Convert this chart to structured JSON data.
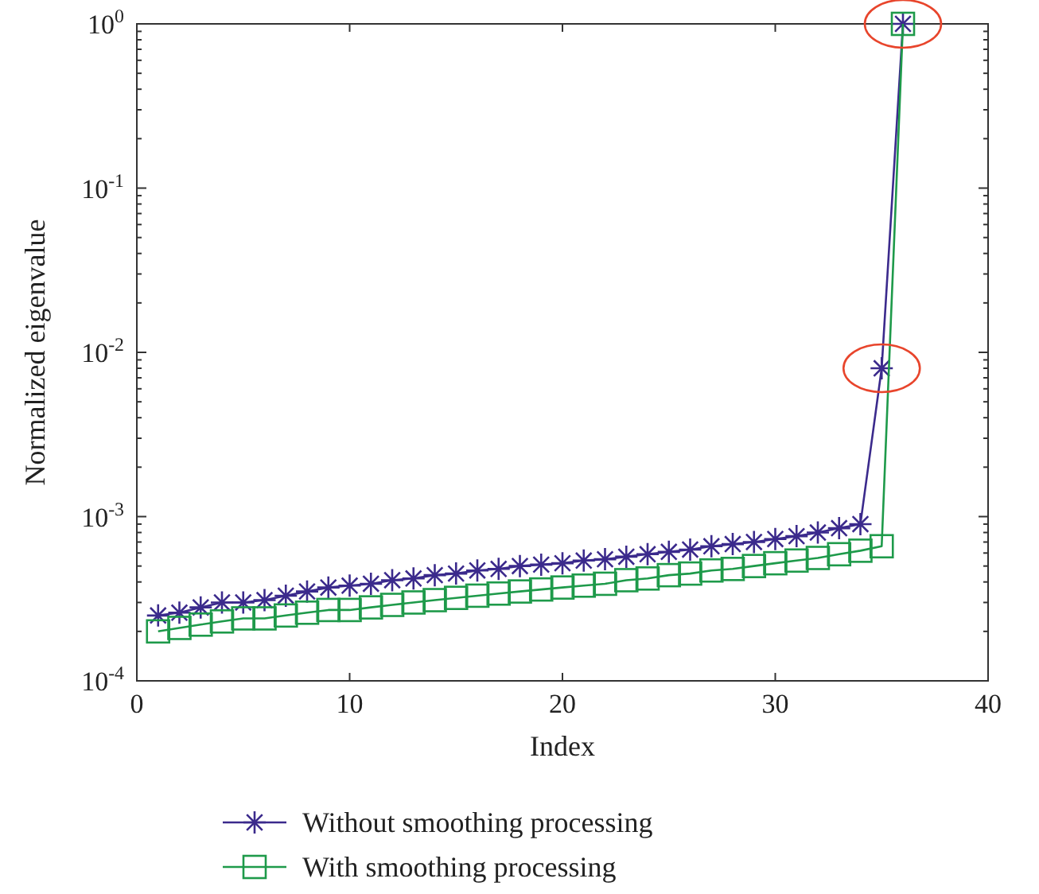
{
  "chart_data": {
    "type": "line",
    "xlabel": "Index",
    "ylabel": "Normalized eigenvalue",
    "log": "y",
    "xlim": [
      0,
      40
    ],
    "xticks": [
      0,
      10,
      20,
      30,
      40
    ],
    "ylim": [
      0.0001,
      1
    ],
    "yticks": [
      {
        "value": 0.0001,
        "label": "10$^{-4}$"
      },
      {
        "value": 0.001,
        "label": "10$^{-3}$"
      },
      {
        "value": 0.01,
        "label": "10$^{-2}$"
      },
      {
        "value": 0.1,
        "label": "10$^{-1}$"
      },
      {
        "value": 1,
        "label": "10$^{0}$"
      }
    ],
    "x": [
      1,
      2,
      3,
      4,
      5,
      6,
      7,
      8,
      9,
      10,
      11,
      12,
      13,
      14,
      15,
      16,
      17,
      18,
      19,
      20,
      21,
      22,
      23,
      24,
      25,
      26,
      27,
      28,
      29,
      30,
      31,
      32,
      33,
      34,
      35,
      36
    ],
    "legend": "bottom",
    "grid": false,
    "line_style": "solid",
    "series": [
      {
        "name": "Without smoothing processing",
        "color": "#3b2a8c",
        "marker": "cross",
        "values": [
          0.00025,
          0.00026,
          0.00028,
          0.0003,
          0.0003,
          0.00031,
          0.00033,
          0.00035,
          0.00037,
          0.00038,
          0.00039,
          0.00041,
          0.00042,
          0.00044,
          0.00045,
          0.00047,
          0.00048,
          0.0005,
          0.00051,
          0.00052,
          0.00054,
          0.00055,
          0.00057,
          0.00059,
          0.00061,
          0.00063,
          0.00066,
          0.00068,
          0.0007,
          0.00073,
          0.00076,
          0.0008,
          0.00085,
          0.0009,
          0.008,
          1
        ]
      },
      {
        "name": "With smoothing processing",
        "color": "#1e9a4a",
        "marker": "square",
        "values": [
          0.0002,
          0.00021,
          0.00022,
          0.00023,
          0.00024,
          0.00024,
          0.00025,
          0.00026,
          0.00027,
          0.00027,
          0.00028,
          0.00029,
          0.0003,
          0.00031,
          0.00032,
          0.00033,
          0.00034,
          0.00035,
          0.00036,
          0.00037,
          0.00038,
          0.00039,
          0.00041,
          0.00042,
          0.00044,
          0.00045,
          0.00047,
          0.00048,
          0.0005,
          0.00052,
          0.00054,
          0.00056,
          0.00059,
          0.00062,
          0.00066,
          1
        ]
      }
    ]
  }
}
